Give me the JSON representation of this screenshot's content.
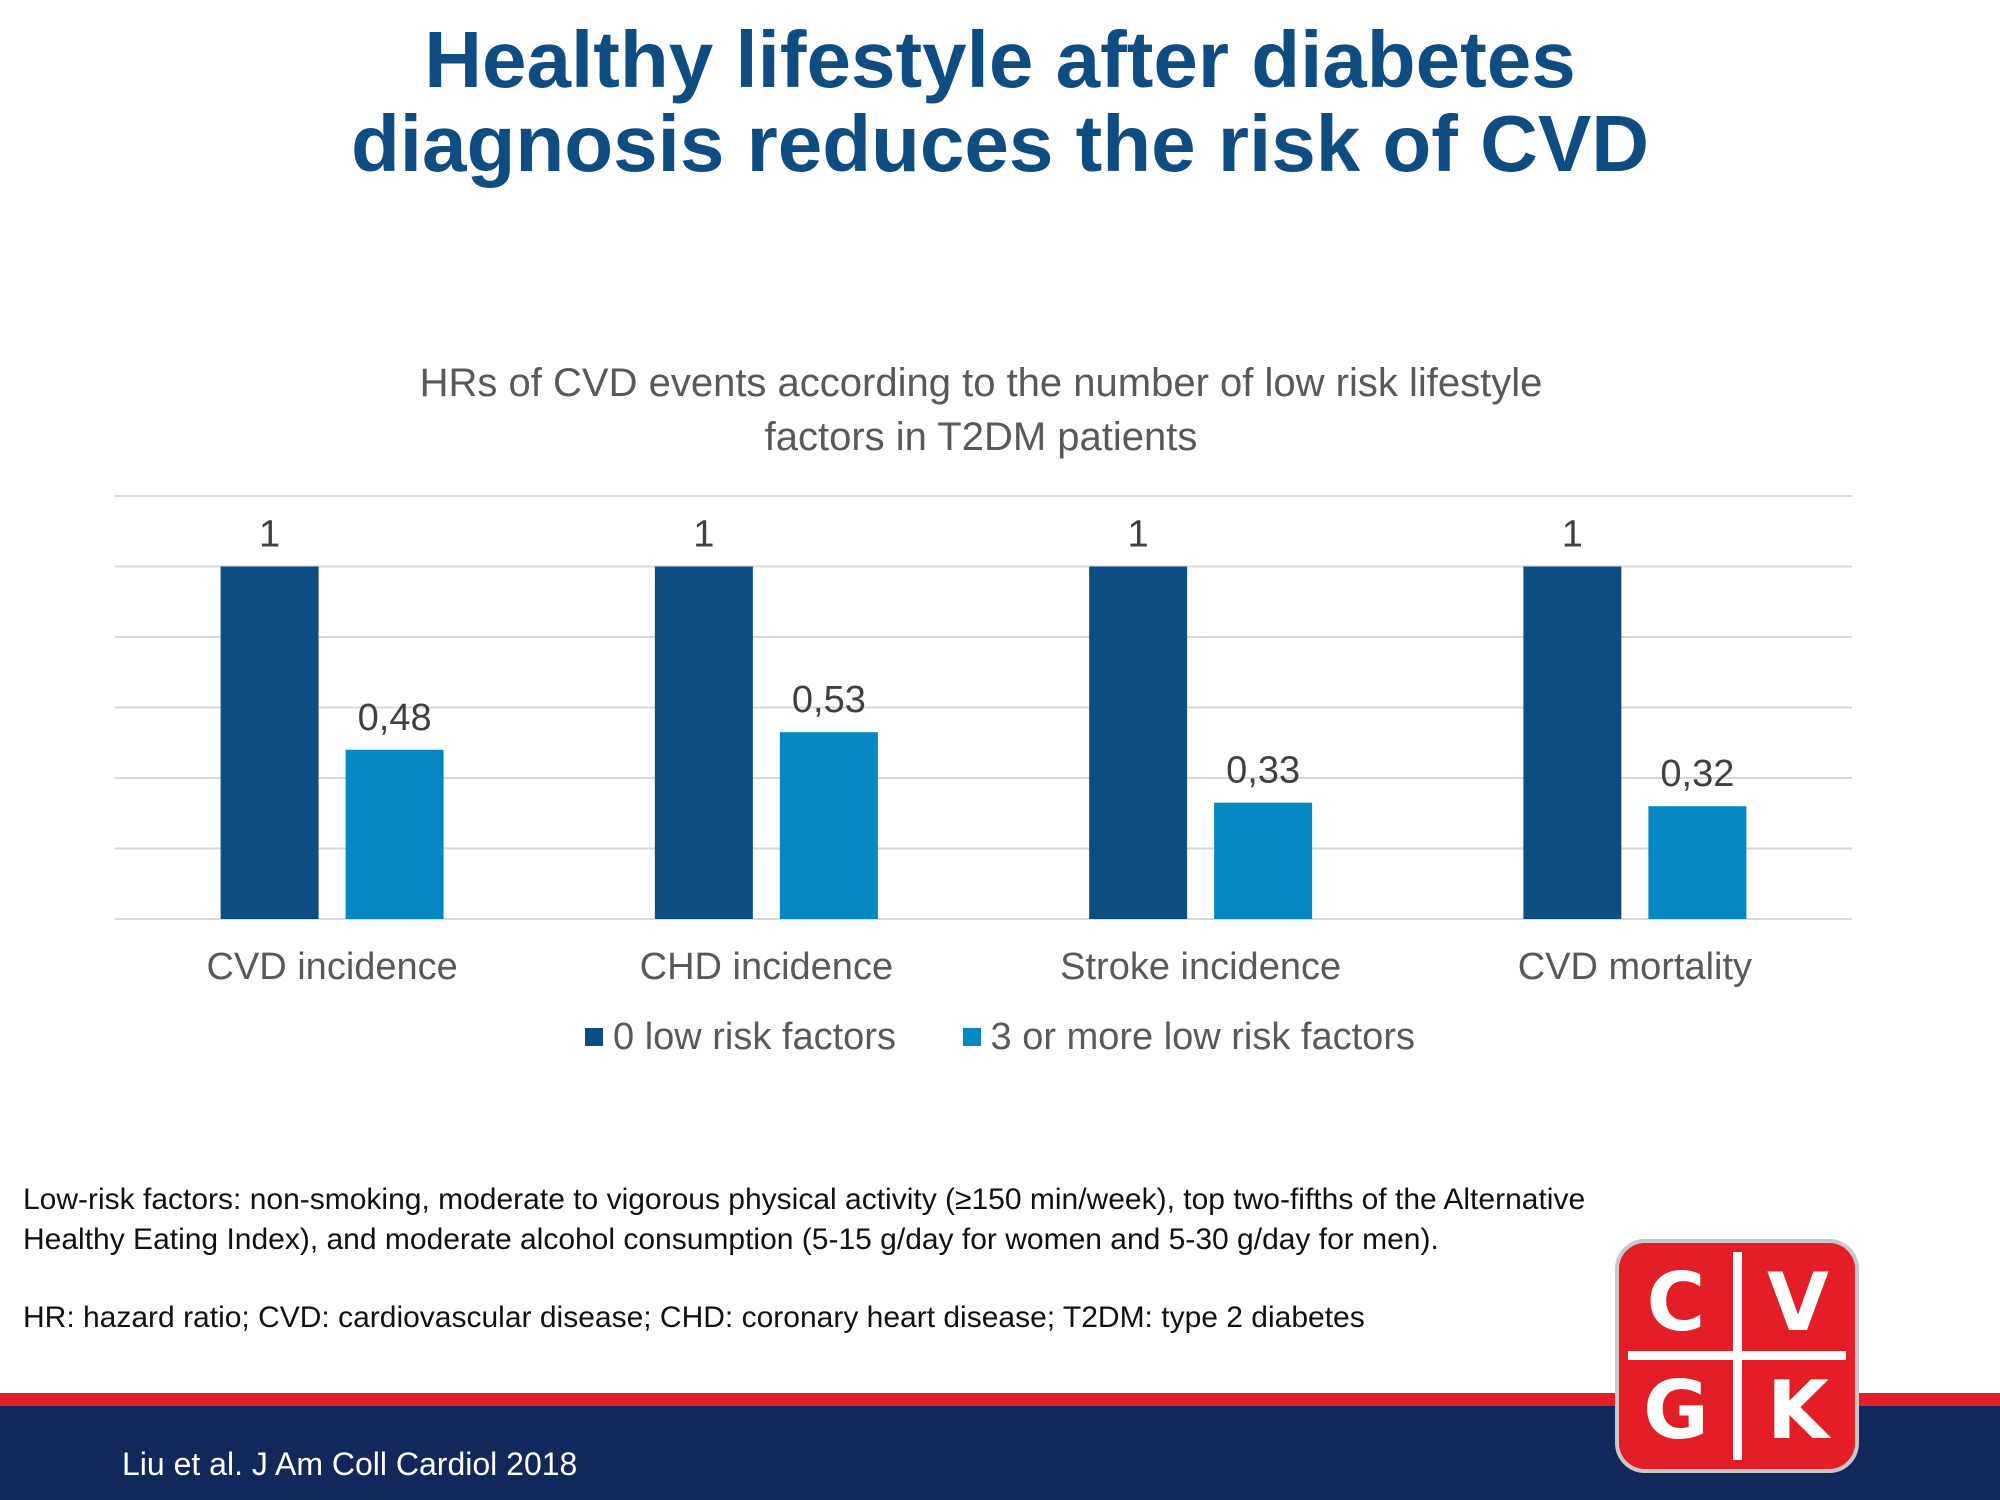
{
  "title": {
    "line1": "Healthy lifestyle after diabetes",
    "line2": "diagnosis reduces the risk of CVD"
  },
  "chart_data": {
    "type": "bar",
    "title": "HRs of CVD events according to the number of low risk lifestyle factors in T2DM patients",
    "title_lines": [
      "HRs of CVD events according to the number  of low risk lifestyle",
      "factors in T2DM patients"
    ],
    "categories": [
      "CVD incidence",
      "CHD incidence",
      "Stroke incidence",
      "CVD mortality"
    ],
    "series": [
      {
        "name": "0 low risk factors",
        "color": "#0e4d82",
        "values": [
          1,
          1,
          1,
          1
        ],
        "labels": [
          "1",
          "1",
          "1",
          "1"
        ]
      },
      {
        "name": "3 or more low risk factors",
        "color": "#0588c2",
        "values": [
          0.48,
          0.53,
          0.33,
          0.32
        ],
        "labels": [
          "0,48",
          "0,53",
          "0,33",
          "0,32"
        ]
      }
    ],
    "ylim": [
      0,
      1.2
    ],
    "grid": true,
    "legend": "bottom",
    "xlabel": "",
    "ylabel": ""
  },
  "footnote": {
    "line1": "Low-risk factors: non-smoking, moderate to vigorous physical activity (≥150 min/week), top two-fifths of the Alternative",
    "line2": "Healthy Eating Index), and moderate alcohol consumption (5-15 g/day for women and 5-30 g/day for men).",
    "abbreviations": "HR: hazard ratio; CVD: cardiovascular disease; CHD: coronary heart disease; T2DM: type 2 diabetes"
  },
  "citation": "Liu et al. J Am Coll Cardiol 2018",
  "logo": {
    "letters": [
      "C",
      "V",
      "G",
      "K"
    ],
    "color": "#e41e26"
  }
}
